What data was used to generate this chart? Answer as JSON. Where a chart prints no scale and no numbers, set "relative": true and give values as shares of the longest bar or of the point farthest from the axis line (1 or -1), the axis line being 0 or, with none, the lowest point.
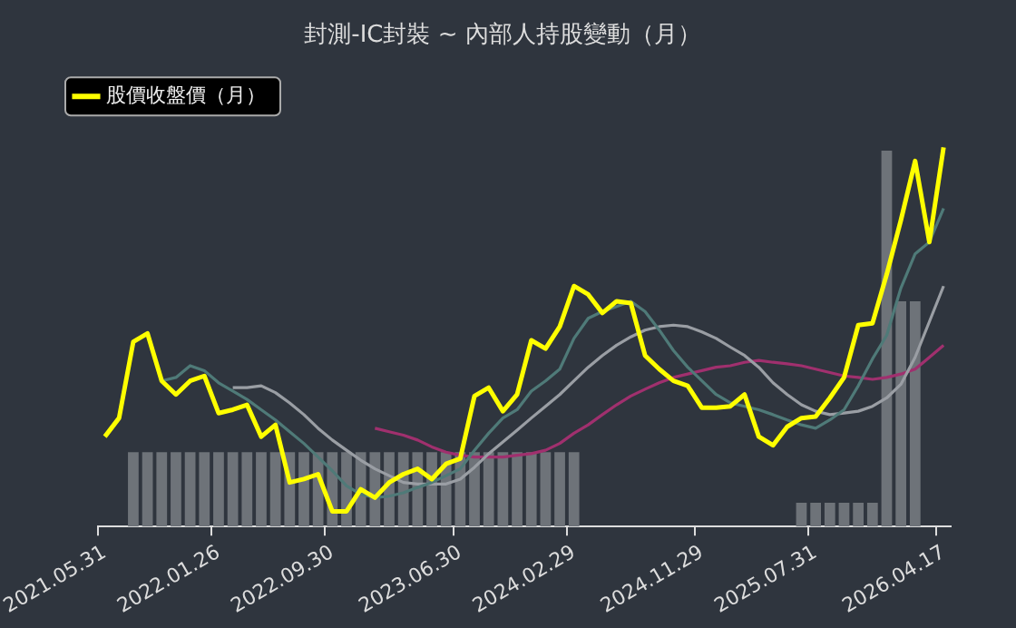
{
  "chart_data": {
    "type": "line",
    "title": "封測-IC封裝 ~ 內部人持股變動（月）",
    "relative": true,
    "legend": "top left",
    "grid": false,
    "marker": "none",
    "categories": [
      "2021.05.31",
      null,
      null,
      null,
      null,
      null,
      null,
      null,
      "2022.01.26",
      null,
      null,
      null,
      null,
      null,
      null,
      null,
      "2022.09.30",
      null,
      null,
      null,
      null,
      null,
      null,
      null,
      null,
      "2023.06.30",
      null,
      null,
      null,
      null,
      null,
      null,
      null,
      "2024.02.29",
      null,
      null,
      null,
      null,
      null,
      null,
      null,
      null,
      "2024.11.29",
      null,
      null,
      null,
      null,
      null,
      null,
      null,
      "2025.07.31",
      null,
      null,
      null,
      null,
      null,
      null,
      null,
      null,
      "2026.04.17"
    ],
    "series": [
      {
        "type": "bar",
        "color": "#6e7379",
        "values": [
          null,
          null,
          0.196,
          0.196,
          0.196,
          0.196,
          0.196,
          0.196,
          0.196,
          0.196,
          0.196,
          0.196,
          0.196,
          0.196,
          0.196,
          0.196,
          0.196,
          0.196,
          0.196,
          0.196,
          0.196,
          0.196,
          0.196,
          0.196,
          0.196,
          0.196,
          0.196,
          0.196,
          0.196,
          0.196,
          0.196,
          0.196,
          0.196,
          0.196,
          null,
          null,
          null,
          null,
          null,
          null,
          null,
          null,
          null,
          null,
          null,
          null,
          null,
          null,
          null,
          0.0625,
          0.0625,
          0.0625,
          0.0625,
          0.0625,
          0.0625,
          0.991,
          0.594,
          0.594,
          null,
          null
        ]
      },
      {
        "color": "#a0306e",
        "values": [
          null,
          null,
          null,
          null,
          null,
          null,
          null,
          null,
          null,
          null,
          null,
          null,
          null,
          null,
          null,
          null,
          null,
          null,
          null,
          0.259,
          0.25,
          0.241,
          0.228,
          0.21,
          0.196,
          0.188,
          0.183,
          0.183,
          0.183,
          0.188,
          0.192,
          0.201,
          0.219,
          0.246,
          0.268,
          0.295,
          0.321,
          0.344,
          0.362,
          0.379,
          0.393,
          0.402,
          0.411,
          0.42,
          0.424,
          0.433,
          0.438,
          0.433,
          0.429,
          0.424,
          0.415,
          0.406,
          0.397,
          0.393,
          0.388,
          0.393,
          0.402,
          0.415,
          0.446,
          0.478
        ]
      },
      {
        "color": "#9a9ea4",
        "values": [
          null,
          null,
          null,
          null,
          null,
          null,
          null,
          null,
          null,
          0.366,
          0.366,
          0.371,
          0.353,
          0.326,
          0.295,
          0.259,
          0.228,
          0.201,
          0.175,
          0.152,
          0.134,
          0.116,
          0.112,
          0.112,
          0.112,
          0.125,
          0.156,
          0.192,
          0.223,
          0.254,
          0.286,
          0.317,
          0.348,
          0.384,
          0.42,
          0.451,
          0.478,
          0.5,
          0.518,
          0.527,
          0.531,
          0.527,
          0.513,
          0.496,
          0.473,
          0.451,
          0.42,
          0.379,
          0.348,
          0.321,
          0.304,
          0.295,
          0.299,
          0.304,
          0.317,
          0.339,
          0.375,
          0.446,
          0.54,
          0.634
        ]
      },
      {
        "color": "#4f7a78",
        "values": [
          null,
          null,
          null,
          null,
          0.384,
          0.393,
          0.424,
          0.411,
          0.379,
          0.357,
          0.335,
          0.308,
          0.281,
          0.25,
          0.219,
          0.183,
          0.147,
          0.107,
          0.085,
          0.076,
          0.08,
          0.089,
          0.103,
          0.116,
          0.134,
          0.152,
          0.201,
          0.246,
          0.286,
          0.308,
          0.357,
          0.384,
          0.415,
          0.496,
          0.549,
          0.567,
          0.58,
          0.594,
          0.567,
          0.518,
          0.464,
          0.42,
          0.384,
          0.348,
          0.326,
          0.317,
          0.308,
          0.295,
          0.281,
          0.268,
          0.259,
          0.281,
          0.308,
          0.371,
          0.442,
          0.504,
          0.629,
          0.719,
          0.75,
          0.839
        ]
      },
      {
        "name": "股價收盤價（月）",
        "color": "#ffff00",
        "values": [
          0.237,
          0.286,
          0.487,
          0.509,
          0.384,
          0.348,
          0.384,
          0.397,
          0.299,
          0.308,
          0.321,
          0.237,
          0.268,
          0.116,
          0.125,
          0.138,
          0.04,
          0.04,
          0.098,
          0.076,
          0.116,
          0.138,
          0.152,
          0.125,
          0.165,
          0.179,
          0.344,
          0.366,
          0.304,
          0.348,
          0.491,
          0.469,
          0.527,
          0.634,
          0.612,
          0.563,
          0.594,
          0.589,
          0.451,
          0.415,
          0.384,
          0.371,
          0.313,
          0.313,
          0.317,
          0.348,
          0.237,
          0.214,
          0.263,
          0.286,
          0.29,
          0.339,
          0.393,
          0.531,
          0.536,
          0.665,
          0.808,
          0.964,
          0.75,
          1
        ]
      }
    ]
  }
}
